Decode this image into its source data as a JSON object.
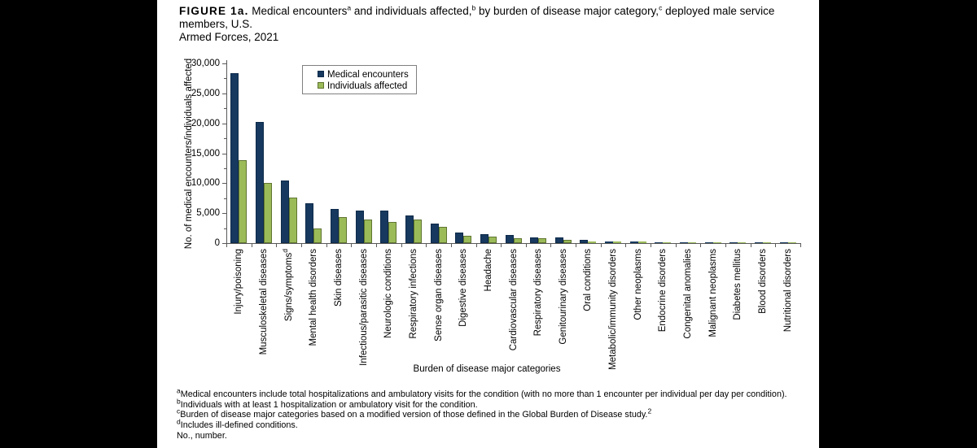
{
  "figure": {
    "title_segments": [
      {
        "text": "FIGURE 1a.",
        "bold": true
      },
      {
        "text": " Medical encounters"
      },
      {
        "sup": "a"
      },
      {
        "text": " and individuals affected,"
      },
      {
        "sup": "b"
      },
      {
        "text": " by burden of disease major category,"
      },
      {
        "sup": "c"
      },
      {
        "text": " deployed male service members, U.S."
      },
      {
        "br": true
      },
      {
        "text": "Armed Forces, 2021"
      }
    ]
  },
  "chart_data": {
    "type": "bar",
    "title": "",
    "xlabel": "Burden of disease major categories",
    "ylabel": "No. of medical encounters/individuals affected",
    "ylim": [
      0,
      30000
    ],
    "ytick_major_interval": 5000,
    "ytick_minor_interval": 2500,
    "ytick_labels": [
      "0",
      "5,000",
      "10,000",
      "15,000",
      "20,000",
      "25,000",
      "30,000"
    ],
    "grid": false,
    "legend_position": "inside-top-left",
    "categories": [
      {
        "label": "Injury/poisoning"
      },
      {
        "label": "Musculoskeletal diseases"
      },
      {
        "label": "Signs/symptoms",
        "sup": "d"
      },
      {
        "label": "Mental health disorders"
      },
      {
        "label": "Skin diseases"
      },
      {
        "label": "Infectious/parasitic diseases"
      },
      {
        "label": "Neurologic conditions"
      },
      {
        "label": "Respiratory infections"
      },
      {
        "label": "Sense organ diseases"
      },
      {
        "label": "Digestive diseases"
      },
      {
        "label": "Headache"
      },
      {
        "label": "Cardiovascular diseases"
      },
      {
        "label": "Respiratory diseases"
      },
      {
        "label": "Genitourinary diseases"
      },
      {
        "label": "Oral conditions"
      },
      {
        "label": "Metabolic/immunity disorders"
      },
      {
        "label": "Other neoplasms"
      },
      {
        "label": "Endocrine disorders"
      },
      {
        "label": "Congenital anomalies"
      },
      {
        "label": "Malignant neoplasms"
      },
      {
        "label": "Diabetes mellitus"
      },
      {
        "label": "Blood disorders"
      },
      {
        "label": "Nutritional disorders"
      }
    ],
    "series": [
      {
        "name": "Medical encounters",
        "color": "#17395F",
        "border_color": "#0D2A4A",
        "values": [
          28400,
          20200,
          10400,
          6650,
          5650,
          5400,
          5400,
          4550,
          3300,
          1700,
          1500,
          1400,
          950,
          950,
          480,
          320,
          300,
          180,
          90,
          60,
          40,
          35,
          25
        ]
      },
      {
        "name": "Individuals affected",
        "color": "#9BBB59",
        "border_color": "#5F7530",
        "values": [
          13900,
          10100,
          7650,
          2450,
          4300,
          3950,
          3580,
          3950,
          2650,
          1200,
          1100,
          780,
          860,
          590,
          330,
          280,
          250,
          130,
          70,
          45,
          30,
          25,
          20
        ]
      }
    ]
  },
  "footnotes": [
    [
      {
        "sup": "a"
      },
      {
        "text": "Medical encounters include total hospitalizations and ambulatory visits for the condition (with no more than 1 encounter per individual per day per condition)."
      }
    ],
    [
      {
        "sup": "b"
      },
      {
        "text": "Individuals with at least 1 hospitalization or ambulatory visit for the condition."
      }
    ],
    [
      {
        "sup": "c"
      },
      {
        "text": "Burden of disease major categories based on a modified version of those defined in the Global Burden of Disease study."
      },
      {
        "sup": "2"
      }
    ],
    [
      {
        "sup": "d"
      },
      {
        "text": "Includes ill-defined conditions."
      }
    ],
    [
      {
        "text": "No., number."
      }
    ]
  ],
  "colors": {
    "background_sides": "#000000",
    "panel_background": "#ffffff",
    "axis": "#595959",
    "legend_border": "#808080",
    "text": "#000000"
  }
}
